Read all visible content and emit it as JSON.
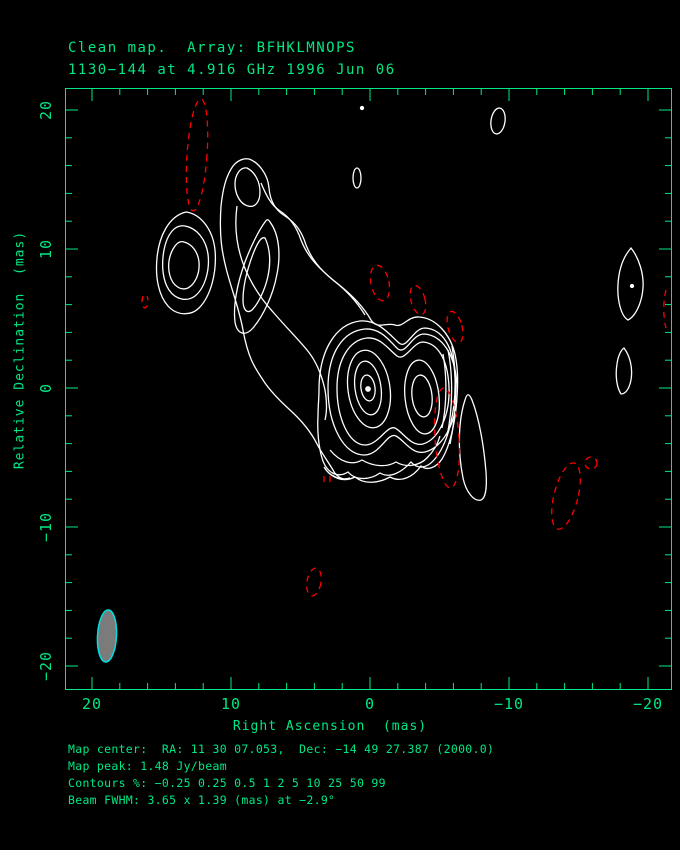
{
  "header": {
    "line1": "Clean map.  Array: BFHKLMNOPS",
    "line2": "1130−144 at 4.916 GHz 1996 Jun 06"
  },
  "axes": {
    "x": {
      "label": "Right Ascension  (mas)",
      "ticks": [
        {
          "value": 20,
          "label": "20"
        },
        {
          "value": 10,
          "label": "10"
        },
        {
          "value": 0,
          "label": "0"
        },
        {
          "value": -10,
          "label": "−10"
        },
        {
          "value": -20,
          "label": "−20"
        }
      ],
      "minor_step": 2,
      "range": [
        22,
        -22
      ]
    },
    "y": {
      "label": "Relative Declination  (mas)",
      "ticks": [
        {
          "value": 20,
          "label": "20"
        },
        {
          "value": 10,
          "label": "10"
        },
        {
          "value": 0,
          "label": "0"
        },
        {
          "value": -10,
          "label": "−10"
        },
        {
          "value": -20,
          "label": "−20"
        }
      ],
      "minor_step": 2,
      "range": [
        -22,
        22
      ]
    }
  },
  "footer": {
    "map_center": "Map center:  RA: 11 30 07.053,  Dec: −14 49 27.387 (2000.0)",
    "map_peak": "Map peak: 1.48 Jy/beam",
    "contours": "Contours %: −0.25 0.25 0.5 1 2 5 10 25 50 99",
    "beam_fwhm": "Beam FWHM: 3.65 x 1.39 (mas) at −2.9°"
  },
  "colors": {
    "axis_green": "#00e784",
    "positive_contour": "#ffffff",
    "negative_contour": "#ff0000",
    "beam_fill": "#7b7b7b",
    "beam_outline": "#00e0e0",
    "background": "#000000"
  },
  "chart_data": {
    "type": "contour",
    "title": "Clean map. Array: BFHKLMNOPS",
    "source": "1130−144",
    "frequency": "4.916 GHz",
    "date": "1996 Jun 06",
    "xlabel": "Right Ascension (mas)",
    "ylabel": "Relative Declination (mas)",
    "xlim": [
      22,
      -22
    ],
    "ylim": [
      -22,
      22
    ],
    "grid": false,
    "contour_levels_percent": [
      -0.25,
      0.25,
      0.5,
      1,
      2,
      5,
      10,
      25,
      50,
      99
    ],
    "map_peak": "1.48 Jy/beam",
    "map_center": {
      "ra": "11 30 07.053",
      "dec": "−14 49 27.387",
      "equinox": "2000.0"
    },
    "beam_fwhm": {
      "major_mas": 3.65,
      "minor_mas": 1.39,
      "pa_deg": -2.9
    },
    "positive_features": [
      {
        "name": "core-primary-peak",
        "ra_mas": 0.1,
        "dec_mas": 0.0,
        "note": "map peak 1.48 Jy/beam, nested contours to 99%"
      },
      {
        "name": "core-secondary-component",
        "ra_mas": -3.7,
        "dec_mas": -0.7,
        "note": "second bright peak of double core"
      },
      {
        "name": "jet-knot",
        "ra_mas": 13.3,
        "dec_mas": 8.9,
        "note": "closed 3-level knot NE of core"
      },
      {
        "name": "jet-hook-ne-end",
        "ra_mas": 8.8,
        "dec_mas": 15.0,
        "note": "jet bends/hooks at NE extremity"
      },
      {
        "name": "jet-inner-ridge",
        "ra_mas": 8.0,
        "dec_mas": 8.0,
        "note": "elongated closed contour between knot and core"
      },
      {
        "name": "detached-blob-se-of-core",
        "ra_mas": -7.6,
        "dec_mas": -4.5
      },
      {
        "name": "west-blob",
        "ra_mas": -18.8,
        "dec_mas": 7.5,
        "note": "lens-shaped, faint point inside"
      },
      {
        "name": "west-small-blob",
        "ra_mas": -18.2,
        "dec_mas": 1.2
      },
      {
        "name": "north-spot",
        "ra_mas": -9.2,
        "dec_mas": 19.3
      },
      {
        "name": "small-spot-above-jet",
        "ra_mas": 0.9,
        "dec_mas": 15.1
      },
      {
        "name": "tiny-dot-top",
        "ra_mas": 0.6,
        "dec_mas": 20.1
      }
    ],
    "negative_features": [
      {
        "name": "neg-ridge-north-of-knot",
        "ra_mas": 12.4,
        "dec_mas": 17.0,
        "note": "long vertical dashed ellipse"
      },
      {
        "name": "neg-tiny-west-of-knot",
        "ra_mas": 16.1,
        "dec_mas": 6.2
      },
      {
        "name": "neg-spot-1",
        "ra_mas": -0.7,
        "dec_mas": 7.6
      },
      {
        "name": "neg-spot-2",
        "ra_mas": -3.5,
        "dec_mas": 6.3
      },
      {
        "name": "neg-spot-3",
        "ra_mas": -6.1,
        "dec_mas": 4.4
      },
      {
        "name": "neg-ridge-east-of-core",
        "ra_mas": -5.5,
        "dec_mas": -3.7
      },
      {
        "name": "neg-tiny-below-core",
        "ra_mas": 3.2,
        "dec_mas": -6.7
      },
      {
        "name": "neg-spot-south",
        "ra_mas": 4.0,
        "dec_mas": -14.0
      },
      {
        "name": "neg-blob-sw",
        "ra_mas": -14.1,
        "dec_mas": -7.8
      },
      {
        "name": "neg-circle-sw",
        "ra_mas": -15.9,
        "dec_mas": -5.4
      },
      {
        "name": "neg-edge-west",
        "ra_mas": -21.4,
        "dec_mas": 5.3
      }
    ]
  }
}
